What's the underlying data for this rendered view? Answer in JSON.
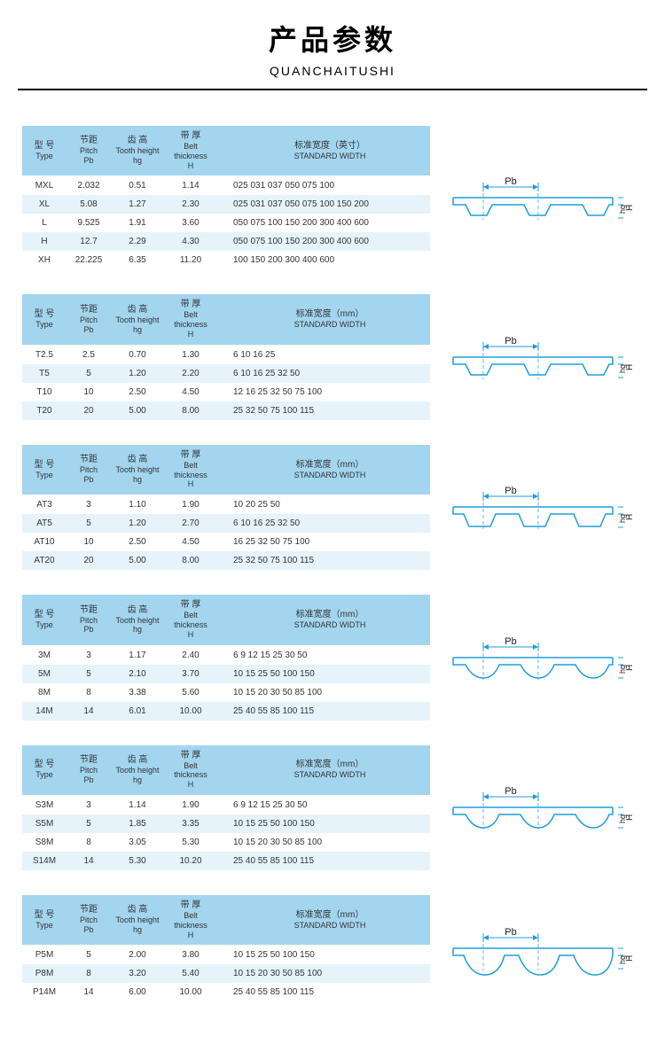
{
  "header": {
    "title": "产品参数",
    "subtitle": "QUANCHAITUSHI"
  },
  "column_headers": {
    "type_cn": "型 号",
    "type_en": "Type",
    "pitch_cn": "节距",
    "pitch_en": "Pitch",
    "pitch_unit": "Pb",
    "tooth_cn": "齿 高",
    "tooth_en": "Tooth height",
    "tooth_unit": "hg",
    "thick_cn": "带 厚",
    "thick_en": "Belt thickness",
    "thick_unit": "H",
    "width_inch_cn": "标准宽度（英寸）",
    "width_mm_cn": "标准宽度（mm）",
    "width_en": "STANDARD  WIDTH"
  },
  "diagram": {
    "pb_label": "Pb",
    "hg_label": "hg",
    "h_label": "H",
    "stroke_color": "#1f9ddb",
    "text_color": "#1a1a1a"
  },
  "tables": [
    {
      "width_header_cn_key": "width_inch_cn",
      "profile": "trapezoid",
      "rows": [
        {
          "t": "MXL",
          "p": "2.032",
          "hg": "0.51",
          "h": "1.14",
          "w": "025 031 037 050 075 100"
        },
        {
          "t": "XL",
          "p": "5.08",
          "hg": "1.27",
          "h": "2.30",
          "w": "025 031 037 050 075 100  150 200"
        },
        {
          "t": "L",
          "p": "9.525",
          "hg": "1.91",
          "h": "3.60",
          "w": "050 075 100 150  200 300 400 600"
        },
        {
          "t": "H",
          "p": "12.7",
          "hg": "2.29",
          "h": "4.30",
          "w": "050 075 100 150  200 300 400 600"
        },
        {
          "t": "XH",
          "p": "22.225",
          "hg": "6.35",
          "h": "11.20",
          "w": "100 150  200 300 400 600"
        }
      ]
    },
    {
      "width_header_cn_key": "width_mm_cn",
      "profile": "trapezoid",
      "rows": [
        {
          "t": "T2.5",
          "p": "2.5",
          "hg": "0.70",
          "h": "1.30",
          "w": "6  10  16  25"
        },
        {
          "t": "T5",
          "p": "5",
          "hg": "1.20",
          "h": "2.20",
          "w": "6  10  16  25  32  50"
        },
        {
          "t": "T10",
          "p": "10",
          "hg": "2.50",
          "h": "4.50",
          "w": "12  16  25  32  50  75  100"
        },
        {
          "t": "T20",
          "p": "20",
          "hg": "5.00",
          "h": "8.00",
          "w": "25  32  50  75  100  115"
        }
      ]
    },
    {
      "width_header_cn_key": "width_mm_cn",
      "profile": "trapezoid_wide",
      "rows": [
        {
          "t": "AT3",
          "p": "3",
          "hg": "1.10",
          "h": "1.90",
          "w": "10  20  25  50"
        },
        {
          "t": "AT5",
          "p": "5",
          "hg": "1.20",
          "h": "2.70",
          "w": "6  10  16  25  32  50"
        },
        {
          "t": "AT10",
          "p": "10",
          "hg": "2.50",
          "h": "4.50",
          "w": "16  25  32  50  75  100"
        },
        {
          "t": "AT20",
          "p": "20",
          "hg": "5.00",
          "h": "8.00",
          "w": "25  32  50  75  100  115"
        }
      ]
    },
    {
      "width_header_cn_key": "width_mm_cn",
      "profile": "curved",
      "rows": [
        {
          "t": "3M",
          "p": "3",
          "hg": "1.17",
          "h": "2.40",
          "w": "6   9   12  15  25  30  50"
        },
        {
          "t": "5M",
          "p": "5",
          "hg": "2.10",
          "h": "3.70",
          "w": "10  15  25  50  100  150"
        },
        {
          "t": "8M",
          "p": "8",
          "hg": "3.38",
          "h": "5.60",
          "w": "10  15  20  30  50  85  100"
        },
        {
          "t": "14M",
          "p": "14",
          "hg": "6.01",
          "h": "10.00",
          "w": "25  40  55  85  100  115"
        }
      ]
    },
    {
      "width_header_cn_key": "width_mm_cn",
      "profile": "curved",
      "rows": [
        {
          "t": "S3M",
          "p": "3",
          "hg": "1.14",
          "h": "1.90",
          "w": "6   9   12  15  25  30  50"
        },
        {
          "t": "S5M",
          "p": "5",
          "hg": "1.85",
          "h": "3.35",
          "w": "10  15  25  50  100  150"
        },
        {
          "t": "S8M",
          "p": "8",
          "hg": "3.05",
          "h": "5.30",
          "w": "10  15  20  30  50  85  100"
        },
        {
          "t": "S14M",
          "p": "14",
          "hg": "5.30",
          "h": "10.20",
          "w": "25  40  55  85  100  115"
        }
      ]
    },
    {
      "width_header_cn_key": "width_mm_cn",
      "profile": "curved_deep",
      "rows": [
        {
          "t": "P5M",
          "p": "5",
          "hg": "2.00",
          "h": "3.80",
          "w": "10  15  25  50  100  150"
        },
        {
          "t": "P8M",
          "p": "8",
          "hg": "3.20",
          "h": "5.40",
          "w": "10  15  20  30  50  85  100"
        },
        {
          "t": "P14M",
          "p": "14",
          "hg": "6.00",
          "h": "10.00",
          "w": "25  40  55  85  100  115"
        }
      ]
    }
  ]
}
